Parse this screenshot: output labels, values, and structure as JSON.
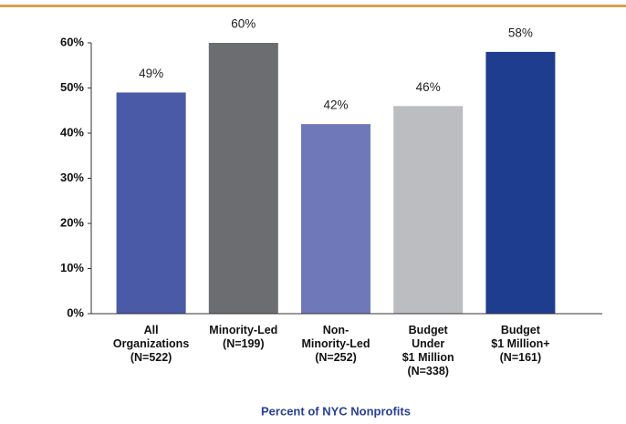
{
  "chart_data": {
    "type": "bar",
    "categories": [
      [
        "All",
        "Organizations",
        "(N=522)"
      ],
      [
        "Minority-Led",
        "(N=199)"
      ],
      [
        "Non-",
        "Minority-Led",
        "(N=252)"
      ],
      [
        "Budget",
        "Under",
        "$1 Million",
        "(N=338)"
      ],
      [
        "Budget",
        "$1 Million+",
        "(N=161)"
      ]
    ],
    "values": [
      49,
      60,
      42,
      46,
      58
    ],
    "value_labels": [
      "49%",
      "60%",
      "42%",
      "46%",
      "58%"
    ],
    "colors": [
      "#4a5aa6",
      "#6b6d71",
      "#6f79b9",
      "#bcbdc0",
      "#1f3d8f"
    ],
    "xlabel": "Percent of NYC Nonprofits",
    "ylim": [
      0,
      60
    ],
    "yticks": [
      {
        "value": 0,
        "label": "0%"
      },
      {
        "value": 10,
        "label": "10%"
      },
      {
        "value": 20,
        "label": "20%"
      },
      {
        "value": 30,
        "label": "30%"
      },
      {
        "value": 40,
        "label": "40%"
      },
      {
        "value": 50,
        "label": "50%"
      },
      {
        "value": 60,
        "label": "60%"
      }
    ],
    "grid": false
  }
}
